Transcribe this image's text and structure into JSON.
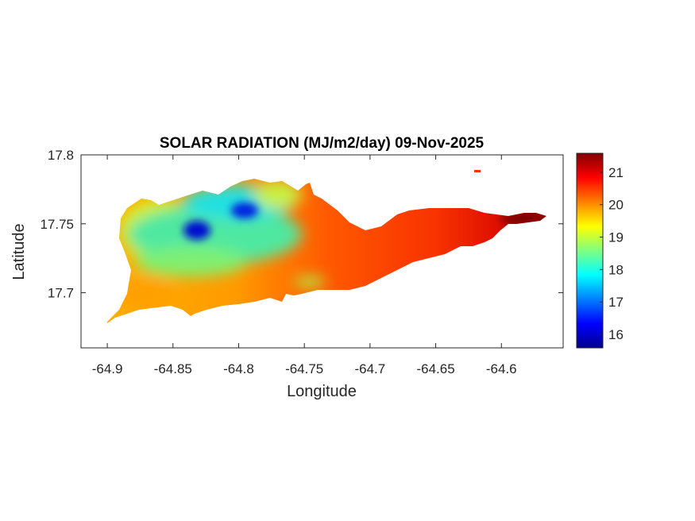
{
  "chart_data": {
    "type": "heatmap",
    "title": "SOLAR RADIATION (MJ/m2/day) 09-Nov-2025",
    "xlabel": "Longitude",
    "ylabel": "Latitude",
    "xlim": [
      -64.92,
      -64.553
    ],
    "ylim": [
      17.66,
      17.8
    ],
    "xticks": [
      -64.9,
      -64.85,
      -64.8,
      -64.75,
      -64.7,
      -64.65,
      -64.6
    ],
    "xtick_labels": [
      "-64.9",
      "-64.85",
      "-64.8",
      "-64.75",
      "-64.7",
      "-64.65",
      "-64.6"
    ],
    "yticks": [
      17.7,
      17.75,
      17.8
    ],
    "ytick_labels": [
      "17.7",
      "17.75",
      "17.8"
    ],
    "colormap": "jet",
    "colorbar": {
      "clim": [
        15.585,
        21.585
      ],
      "ticks": [
        16,
        17,
        18,
        19,
        20,
        21
      ],
      "tick_labels": [
        "16",
        "17",
        "18",
        "19",
        "20",
        "21"
      ],
      "placement": "right"
    },
    "field_summary": {
      "west_region": 18.5,
      "blue_minimum_1": [
        -64.83,
        17.745,
        16.0
      ],
      "blue_minimum_2": [
        -64.8,
        17.76,
        16.3
      ],
      "central_region": 20.3,
      "east_tip_maximum": [
        -64.59,
        17.752,
        21.5
      ]
    },
    "grid": false
  }
}
